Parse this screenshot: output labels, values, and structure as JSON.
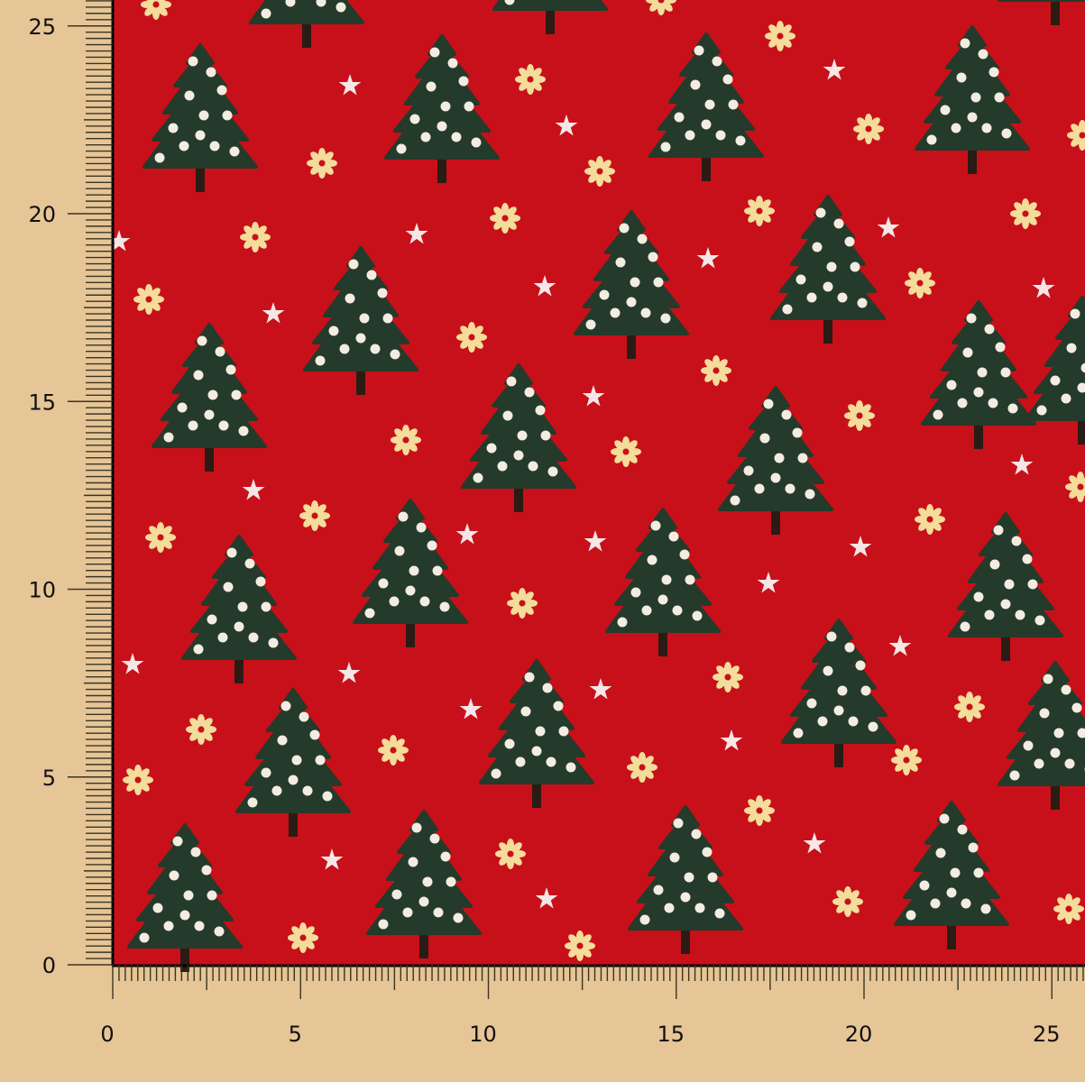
{
  "colors": {
    "background": "#e6c596",
    "fabric": "#c8101a",
    "tree": "#243a2a",
    "ornament": "#f3ece0",
    "snowflake": "#f4dc9a",
    "star": "#f6e6e6",
    "ruler_ink": "#3a3424"
  },
  "ruler": {
    "unit_step": 5,
    "x_labels": [
      "0",
      "5",
      "10",
      "15",
      "20",
      "25"
    ],
    "y_labels": [
      "0",
      "5",
      "10",
      "15",
      "20",
      "25"
    ]
  },
  "pattern": {
    "motifs": [
      "christmas-tree-icon",
      "snowflake-icon",
      "star-icon"
    ]
  }
}
